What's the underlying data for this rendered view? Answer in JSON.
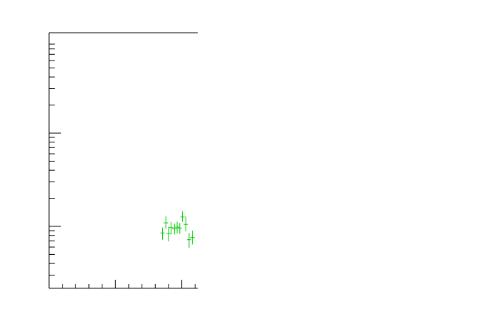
{
  "chart_data": {
    "type": "scatter",
    "title": "",
    "xlabel": "",
    "ylabel": "",
    "y_scale": "log",
    "grid": false,
    "legend": "none",
    "series_color": "#00cc00",
    "axis_color": "#000000",
    "points": [
      {
        "x": 0.855,
        "y": 0.85,
        "yerr_low": 0.13,
        "yerr_high": 0.12
      },
      {
        "x": 0.88,
        "y": 1.09,
        "yerr_low": 0.15,
        "yerr_high": 0.2
      },
      {
        "x": 0.9,
        "y": 0.84,
        "yerr_low": 0.15,
        "yerr_high": 0.15
      },
      {
        "x": 0.92,
        "y": 0.97,
        "yerr_low": 0.15,
        "yerr_high": 0.15
      },
      {
        "x": 0.945,
        "y": 0.94,
        "yerr_low": 0.12,
        "yerr_high": 0.13
      },
      {
        "x": 0.965,
        "y": 0.98,
        "yerr_low": 0.14,
        "yerr_high": 0.14
      },
      {
        "x": 0.985,
        "y": 0.96,
        "yerr_low": 0.13,
        "yerr_high": 0.13
      },
      {
        "x": 1.005,
        "y": 1.26,
        "yerr_low": 0.14,
        "yerr_high": 0.19
      },
      {
        "x": 1.03,
        "y": 1.05,
        "yerr_low": 0.17,
        "yerr_high": 0.24
      },
      {
        "x": 1.055,
        "y": 0.72,
        "yerr_low": 0.13,
        "yerr_high": 0.13
      },
      {
        "x": 1.08,
        "y": 0.76,
        "yerr_low": 0.12,
        "yerr_high": 0.14
      }
    ]
  }
}
